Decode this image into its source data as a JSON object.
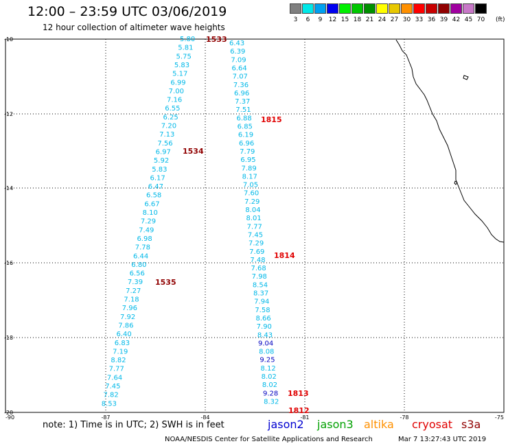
{
  "header": {
    "title": "12:00 – 23:59 UTC 03/06/2019",
    "subtitle": "12 hour collection of altimeter wave heights"
  },
  "legend": {
    "unit": "(ft)",
    "bins": [
      {
        "label": "3",
        "color": "#808080"
      },
      {
        "label": "6",
        "color": "#00e8e8"
      },
      {
        "label": "9",
        "color": "#00a0f0"
      },
      {
        "label": "12",
        "color": "#0000f0"
      },
      {
        "label": "15",
        "color": "#00f000"
      },
      {
        "label": "18",
        "color": "#00c800"
      },
      {
        "label": "21",
        "color": "#009000"
      },
      {
        "label": "24",
        "color": "#ffff00"
      },
      {
        "label": "27",
        "color": "#e8c800"
      },
      {
        "label": "30",
        "color": "#ff9000"
      },
      {
        "label": "33",
        "color": "#ff0000"
      },
      {
        "label": "36",
        "color": "#c80000"
      },
      {
        "label": "39",
        "color": "#900000"
      },
      {
        "label": "42",
        "color": "#a000a0"
      },
      {
        "label": "45",
        "color": "#c878c8"
      },
      {
        "label": "70",
        "color": "#000000"
      }
    ]
  },
  "axes": {
    "lon_labels": [
      "-90",
      "-87",
      "-84",
      "-81",
      "-78",
      "-75"
    ],
    "lat_labels": [
      "-10",
      "-12",
      "-14",
      "-16",
      "-18",
      "-20"
    ]
  },
  "track_a": {
    "values": [
      "5.80",
      "5.81",
      "5.75",
      "5.83",
      "5.17",
      "6.99",
      "7.00",
      "7.16",
      "6.55",
      "6.25",
      "7.20",
      "7.13",
      "7.56",
      "6.97",
      "5.92",
      "5.83",
      "6.17",
      "6.47",
      "6.58",
      "6.67",
      "8.10",
      "7.29",
      "7.49",
      "6.98",
      "7.78",
      "6.44",
      "6.80",
      "6.56",
      "7.39",
      "7.27",
      "7.18",
      "7.96",
      "7.92",
      "7.86",
      "6.40",
      "6.83",
      "7.19",
      "8.82",
      "7.77",
      "7.64",
      "7.45",
      "7.82",
      "8.53"
    ],
    "times": [
      "1533",
      "1534",
      "1535"
    ]
  },
  "track_b": {
    "values": [
      "6.43",
      "6.39",
      "7.09",
      "6.64",
      "7.07",
      "7.36",
      "6.96",
      "7.37",
      "7.51",
      "6.88",
      "6.85",
      "6.19",
      "6.96",
      "7.79",
      "6.95",
      "7.89",
      "8.17",
      "7.05",
      "7.60",
      "7.29",
      "8.04",
      "8.01",
      "7.77",
      "7.45",
      "7.29",
      "7.69",
      "7.48",
      "7.68",
      "7.98",
      "8.54",
      "8.37",
      "7.94",
      "7.58",
      "8.66",
      "7.90",
      "8.43",
      "9.04",
      "8.08",
      "9.25",
      "8.12",
      "8.02",
      "8.02",
      "9.28",
      "8.32"
    ],
    "times": [
      "1815",
      "1814",
      "1813",
      "1812"
    ]
  },
  "footer": {
    "note": "note:  1) Time is in UTC;  2) SWH is in feet",
    "satellites": [
      {
        "name": "jason2",
        "color": "#0000d0"
      },
      {
        "name": "jason3",
        "color": "#00a000"
      },
      {
        "name": "altika",
        "color": "#ff9000"
      },
      {
        "name": "cryosat",
        "color": "#e00000"
      },
      {
        "name": "s3a",
        "color": "#900000"
      }
    ],
    "credit": "NOAA/NESDIS Center for Satellite Applications and Research",
    "timestamp": "Mar  7 13:27:43 UTC 2019"
  }
}
